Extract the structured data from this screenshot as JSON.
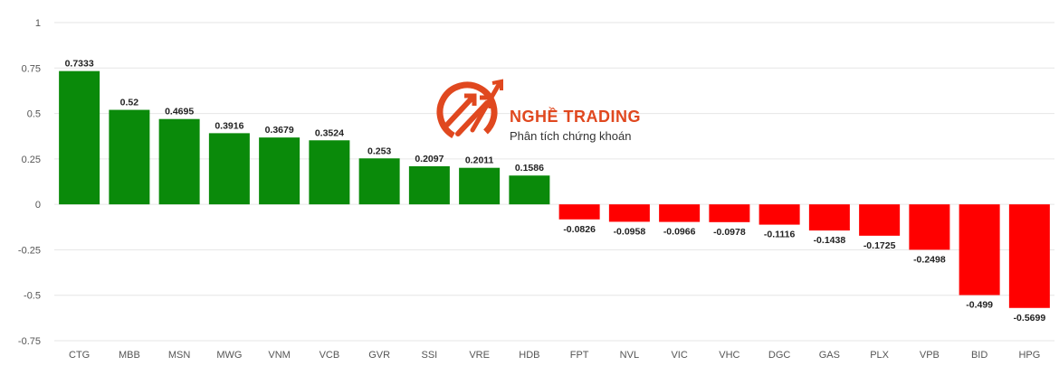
{
  "chart_data": {
    "type": "bar",
    "categories": [
      "CTG",
      "MBB",
      "MSN",
      "MWG",
      "VNM",
      "VCB",
      "GVR",
      "SSI",
      "VRE",
      "HDB",
      "FPT",
      "NVL",
      "VIC",
      "VHC",
      "DGC",
      "GAS",
      "PLX",
      "VPB",
      "BID",
      "HPG"
    ],
    "values": [
      0.7333,
      0.52,
      0.4695,
      0.3916,
      0.3679,
      0.3524,
      0.253,
      0.2097,
      0.2011,
      0.1586,
      -0.0826,
      -0.0958,
      -0.0966,
      -0.0978,
      -0.1116,
      -0.1438,
      -0.1725,
      -0.2498,
      -0.499,
      -0.5699
    ],
    "value_labels": [
      "0.7333",
      "0.52",
      "0.4695",
      "0.3916",
      "0.3679",
      "0.3524",
      "0.253",
      "0.2097",
      "0.2011",
      "0.1586",
      "-0.0826",
      "-0.0958",
      "-0.0966",
      "-0.0978",
      "-0.1116",
      "-0.1438",
      "-0.1725",
      "-0.2498",
      "-0.499",
      "-0.5699"
    ],
    "ylim": [
      -0.75,
      1
    ],
    "yticks": [
      1,
      0.75,
      0.5,
      0.25,
      0,
      -0.25,
      -0.5,
      -0.75
    ],
    "ytick_labels": [
      "1",
      "0.75",
      "0.5",
      "0.25",
      "0",
      "-0.25",
      "-0.5",
      "-0.75"
    ],
    "grid": true,
    "colors": {
      "positive": "#0a8a0a",
      "negative": "#ff0000"
    }
  },
  "watermark": {
    "name": "NGHỀ TRADING",
    "tagline": "Phân tích chứng khoán",
    "color": "#e0481f"
  }
}
